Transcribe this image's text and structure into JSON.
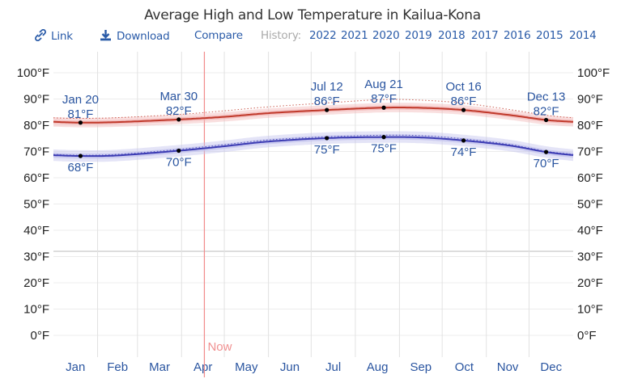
{
  "title": "Average High and Low Temperature in Kailua-Kona",
  "toolbar": {
    "link_label": "Link",
    "link_icon": "link-icon",
    "download_label": "Download",
    "download_icon": "download-icon",
    "compare_label": "Compare",
    "history_label": "History:",
    "years": [
      "2022",
      "2021",
      "2020",
      "2019",
      "2018",
      "2017",
      "2016",
      "2015",
      "2014"
    ]
  },
  "colors": {
    "high": "#c0392b",
    "high_band": "#f2b8b8",
    "low": "#3b3bb3",
    "low_band": "#c4c4ee",
    "now_line": "#f28b8b",
    "label": "#2a55a0",
    "link": "#2a5ba8"
  },
  "chart_data": {
    "type": "line",
    "title": "Average High and Low Temperature in Kailua-Kona",
    "xlabel": "",
    "ylabel": "",
    "x_unit": "day of year",
    "xlim": [
      0,
      365
    ],
    "ylim": [
      -8,
      110
    ],
    "y_ticks": [
      0,
      10,
      20,
      30,
      40,
      50,
      60,
      70,
      80,
      90,
      100
    ],
    "y_tick_labels": [
      "0°F",
      "10°F",
      "20°F",
      "30°F",
      "40°F",
      "50°F",
      "60°F",
      "70°F",
      "80°F",
      "90°F",
      "100°F"
    ],
    "freezing_line": 32,
    "months": [
      "Jan",
      "Feb",
      "Mar",
      "Apr",
      "May",
      "Jun",
      "Jul",
      "Aug",
      "Sep",
      "Oct",
      "Nov",
      "Dec"
    ],
    "month_start_days": [
      0,
      31,
      59,
      90,
      120,
      151,
      181,
      212,
      243,
      273,
      304,
      334
    ],
    "now": {
      "label": "Now",
      "day": 106
    },
    "grid": true,
    "series": [
      {
        "name": "Average High",
        "x": [
          0,
          19,
          45,
          88,
          120,
          151,
          192,
          232,
          260,
          288,
          320,
          346,
          365
        ],
        "values": [
          81.3,
          81.0,
          81.2,
          82.2,
          83.2,
          84.6,
          85.8,
          86.7,
          86.6,
          85.8,
          83.9,
          82.0,
          81.3
        ],
        "band_inner": 0.8,
        "band_outer": 1.8,
        "dotted_values": [
          82.8,
          82.6,
          82.9,
          84.1,
          85.5,
          87.0,
          88.5,
          89.8,
          89.5,
          88.4,
          86.0,
          83.8,
          82.8
        ]
      },
      {
        "name": "Average Low",
        "x": [
          0,
          19,
          45,
          88,
          120,
          151,
          192,
          232,
          260,
          288,
          320,
          346,
          365
        ],
        "values": [
          68.6,
          68.3,
          68.5,
          70.3,
          72.0,
          73.8,
          75.1,
          75.5,
          75.3,
          74.2,
          72.3,
          69.8,
          68.6
        ],
        "band_inner": 1.0,
        "band_outer": 2.2,
        "dotted_values": [
          68.9,
          68.6,
          68.9,
          70.8,
          72.6,
          74.4,
          75.6,
          76.2,
          76.0,
          74.8,
          72.7,
          70.1,
          68.9
        ]
      }
    ],
    "annotations": [
      {
        "series": "Average High",
        "date": "Jan 20",
        "day": 19,
        "value": 81,
        "label": "81°F",
        "position": "above"
      },
      {
        "series": "Average High",
        "date": "Mar 30",
        "day": 88,
        "value": 82,
        "label": "82°F",
        "position": "above"
      },
      {
        "series": "Average High",
        "date": "Jul 12",
        "day": 192,
        "value": 86,
        "label": "86°F",
        "position": "above"
      },
      {
        "series": "Average High",
        "date": "Aug 21",
        "day": 232,
        "value": 87,
        "label": "87°F",
        "position": "above"
      },
      {
        "series": "Average High",
        "date": "Oct 16",
        "day": 288,
        "value": 86,
        "label": "86°F",
        "position": "above"
      },
      {
        "series": "Average High",
        "date": "Dec 13",
        "day": 346,
        "value": 82,
        "label": "82°F",
        "position": "above"
      },
      {
        "series": "Average Low",
        "date": "Jan 20",
        "day": 19,
        "value": 68,
        "label": "68°F",
        "position": "below"
      },
      {
        "series": "Average Low",
        "date": "Mar 30",
        "day": 88,
        "value": 70,
        "label": "70°F",
        "position": "below"
      },
      {
        "series": "Average Low",
        "date": "Jul 12",
        "day": 192,
        "value": 75,
        "label": "75°F",
        "position": "below"
      },
      {
        "series": "Average Low",
        "date": "Aug 21",
        "day": 232,
        "value": 75,
        "label": "75°F",
        "position": "below"
      },
      {
        "series": "Average Low",
        "date": "Oct 16",
        "day": 288,
        "value": 74,
        "label": "74°F",
        "position": "below"
      },
      {
        "series": "Average Low",
        "date": "Dec 13",
        "day": 346,
        "value": 70,
        "label": "70°F",
        "position": "below"
      }
    ]
  }
}
